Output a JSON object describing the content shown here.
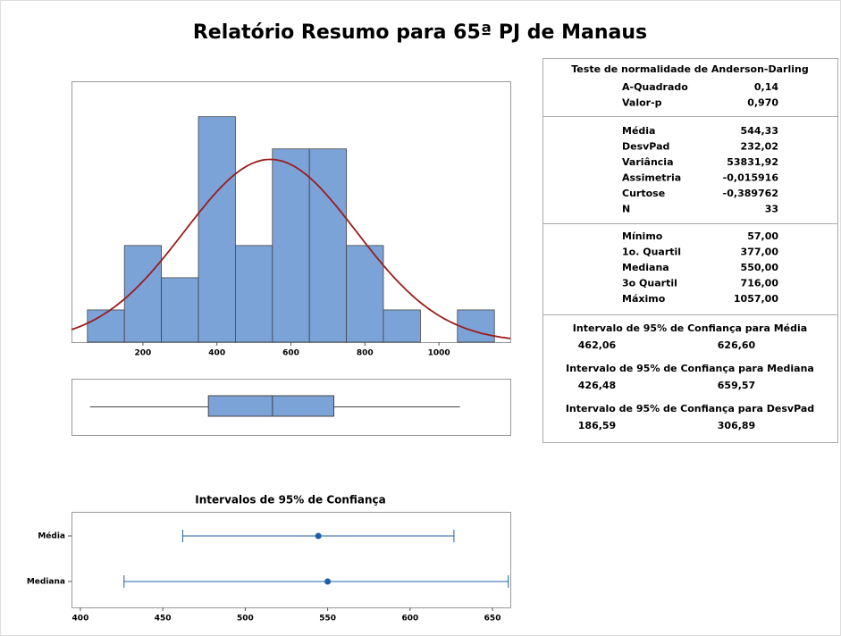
{
  "title": "Relatório Resumo para 65ª PJ de Manaus",
  "chart_data": [
    {
      "type": "histogram",
      "bins": [
        50,
        150,
        250,
        350,
        450,
        550,
        650,
        750,
        850,
        950,
        1050,
        1150
      ],
      "counts": [
        1,
        3,
        2,
        7,
        3,
        6,
        6,
        3,
        1,
        0,
        1
      ],
      "color": "#7ba3d8",
      "curve_color": "#9b1c1c",
      "fit_mean": 544.33,
      "fit_sd": 232.02,
      "xlim": [
        7,
        1193
      ],
      "xticks": [
        200,
        400,
        600,
        800,
        1000
      ],
      "ylim": [
        0,
        8.1
      ]
    },
    {
      "type": "boxplot",
      "min": 57,
      "q1": 377,
      "median": 550,
      "q3": 716,
      "max": 1057,
      "color": "#7ba3d8",
      "xlim": [
        7,
        1193
      ]
    },
    {
      "type": "interval",
      "title": "Intervalos de 95% de Confiança",
      "categories": [
        "Média",
        "Mediana"
      ],
      "values": [
        544.33,
        550
      ],
      "lower": [
        462.06,
        426.48
      ],
      "upper": [
        626.6,
        659.57
      ],
      "color": "#1f5fa8",
      "xlim": [
        394.6,
        660.8
      ],
      "xticks": [
        400,
        450,
        500,
        550,
        600,
        650
      ]
    }
  ],
  "stats": {
    "normality": {
      "title": "Teste de normalidade de Anderson-Darling",
      "rows": [
        [
          "A-Quadrado",
          "0,14"
        ],
        [
          "Valor-p",
          "0,970"
        ]
      ]
    },
    "descriptive": {
      "rows": [
        [
          "Média",
          "544,33"
        ],
        [
          "DesvPad",
          "232,02"
        ],
        [
          "Variância",
          "53831,92"
        ],
        [
          "Assimetria",
          "-0,015916"
        ],
        [
          "Curtose",
          "-0,389762"
        ],
        [
          "N",
          "33"
        ]
      ]
    },
    "quartiles": {
      "rows": [
        [
          "Mínimo",
          "57,00"
        ],
        [
          "1o. Quartil",
          "377,00"
        ],
        [
          "Mediana",
          "550,00"
        ],
        [
          "3o Quartil",
          "716,00"
        ],
        [
          "Máximo",
          "1057,00"
        ]
      ]
    },
    "intervals": [
      {
        "title": "Intervalo de 95% de Confiança para Média",
        "low": "462,06",
        "high": "626,60"
      },
      {
        "title": "Intervalo de 95% de Confiança para Mediana",
        "low": "426,48",
        "high": "659,57"
      },
      {
        "title": "Intervalo de 95% de Confiança para DesvPad",
        "low": "186,59",
        "high": "306,89"
      }
    ]
  }
}
